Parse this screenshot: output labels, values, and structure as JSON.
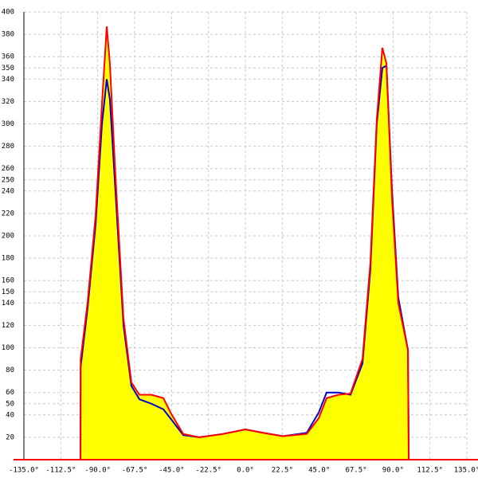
{
  "chart_data": {
    "type": "area",
    "x": [
      -100.5,
      -100.4,
      -96.2,
      -91.3,
      -87.4,
      -84.5,
      -82.6,
      -79.2,
      -74.3,
      -69.5,
      -64.6,
      -57.3,
      -50,
      -45.2,
      -37.9,
      -28.2,
      -13.6,
      0,
      10.7,
      22.8,
      37.4,
      44.7,
      49.5,
      56.8,
      64.1,
      71.4,
      76.2,
      80.1,
      83.5,
      86,
      89.4,
      93.2,
      99.1,
      99.6
    ],
    "series": [
      {
        "color": "#ff0000",
        "fill": "#ffff00",
        "values": [
          0,
          90,
          140,
          218,
          318,
          387,
          354,
          254,
          126,
          69,
          58,
          58,
          55,
          41,
          23,
          20,
          23,
          27,
          24,
          21,
          23,
          37,
          55,
          58,
          59,
          90,
          176,
          304,
          368,
          354,
          233,
          140,
          98,
          0
        ]
      },
      {
        "color": "#0000cc",
        "values": [
          0,
          83,
          135,
          210,
          300,
          340,
          322,
          240,
          120,
          66,
          54,
          50,
          45,
          36,
          22,
          20,
          23,
          27,
          24,
          21,
          24,
          42,
          60,
          60,
          58,
          86,
          170,
          300,
          350,
          352,
          240,
          145,
          98,
          0
        ]
      }
    ],
    "xlim": [
      -135,
      135
    ],
    "xticks": [
      {
        "value": -135,
        "label": "-135.0°"
      },
      {
        "value": -112.5,
        "label": "-112.5°"
      },
      {
        "value": -90,
        "label": "-90.0°"
      },
      {
        "value": -67.5,
        "label": "-67.5°"
      },
      {
        "value": -45,
        "label": "-45.0°"
      },
      {
        "value": -22.5,
        "label": "-22.5°"
      },
      {
        "value": 0,
        "label": "0.0°"
      },
      {
        "value": 22.5,
        "label": "22.5°"
      },
      {
        "value": 45,
        "label": "45.0°"
      },
      {
        "value": 67.5,
        "label": "67.5°"
      },
      {
        "value": 90,
        "label": "90.0°"
      },
      {
        "value": 112.5,
        "label": "112.5°"
      },
      {
        "value": 135,
        "label": "135.0°"
      }
    ],
    "ylim": [
      0,
      400
    ],
    "yticks": [
      20,
      40,
      50,
      60,
      80,
      100,
      120,
      140,
      150,
      160,
      180,
      200,
      220,
      240,
      250,
      260,
      280,
      300,
      320,
      340,
      350,
      360,
      380,
      400
    ],
    "grid": true
  }
}
